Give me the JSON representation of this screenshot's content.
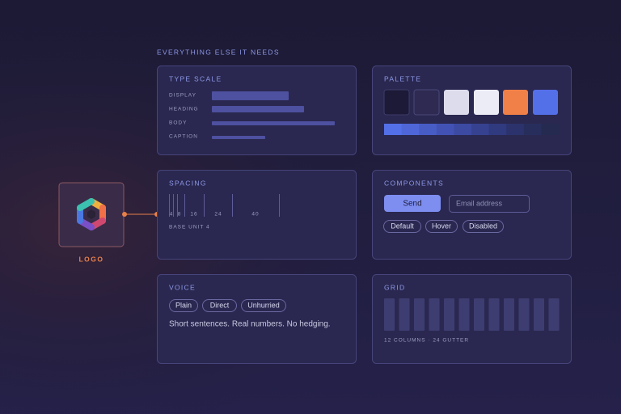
{
  "header": {
    "title": "EVERYTHING ELSE IT NEEDS"
  },
  "logo": {
    "label": "LOGO"
  },
  "type_scale": {
    "title": "TYPE SCALE",
    "rows": [
      "DISPLAY",
      "HEADING",
      "BODY",
      "CAPTION"
    ]
  },
  "palette": {
    "title": "PALETTE"
  },
  "spacing": {
    "title": "SPACING",
    "steps": [
      4,
      8,
      16,
      24,
      40
    ],
    "note": "BASE UNIT 4"
  },
  "components": {
    "title": "COMPONENTS",
    "button": "Send",
    "input_placeholder": "Email address",
    "states": [
      "Default",
      "Hover",
      "Disabled"
    ]
  },
  "voice": {
    "title": "VOICE",
    "tags": [
      "Plain",
      "Direct",
      "Unhurried"
    ],
    "text": "Short sentences. Real numbers. No hedging."
  },
  "grid": {
    "title": "GRID",
    "note": "12 COLUMNS · 24 GUTTER"
  }
}
